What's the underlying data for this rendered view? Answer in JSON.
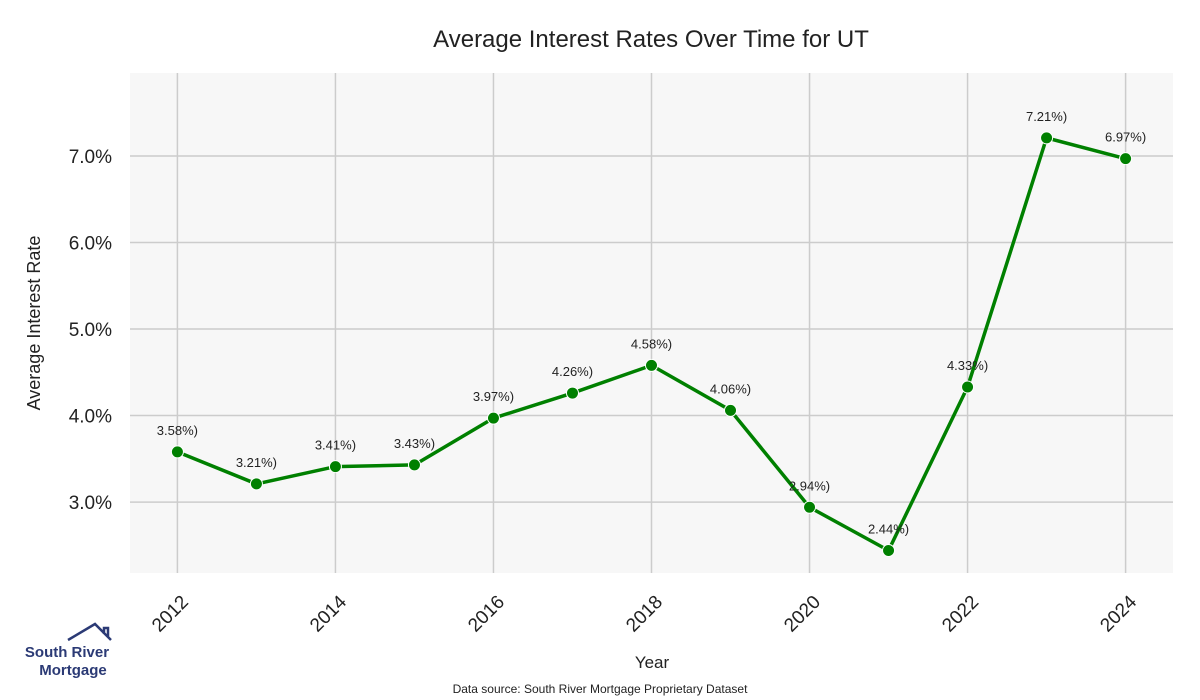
{
  "chart_data": {
    "type": "line",
    "title": "Average Interest Rates Over Time for UT",
    "x_label": "Year",
    "y_label": "Average Interest Rate",
    "x": [
      2012,
      2013,
      2014,
      2015,
      2016,
      2017,
      2018,
      2019,
      2020,
      2021,
      2022,
      2023,
      2024
    ],
    "values": [
      3.58,
      3.21,
      3.41,
      3.43,
      3.97,
      4.26,
      4.58,
      4.06,
      2.94,
      2.44,
      4.33,
      7.21,
      6.97
    ],
    "value_labels": [
      "3.58%)",
      "3.21%)",
      "3.41%)",
      "3.43%)",
      "3.97%)",
      "4.26%)",
      "4.58%)",
      "4.06%)",
      "2.94%)",
      "2.44%)",
      "4.33%)",
      "7.21%)",
      "6.97%)"
    ],
    "color": "#008000",
    "xlim": [
      2011.4,
      2024.6
    ],
    "xticks": [
      2012,
      2014,
      2016,
      2018,
      2020,
      2022,
      2024
    ],
    "ylim": [
      2.18,
      7.96
    ],
    "yticks": [
      {
        "value": 3,
        "label": "3.0%"
      },
      {
        "value": 4,
        "label": "4.0%"
      },
      {
        "value": 5,
        "label": "5.0%"
      },
      {
        "value": 6,
        "label": "6.0%"
      },
      {
        "value": 7,
        "label": "7.0%"
      }
    ],
    "grid": true,
    "source": "Data source: South River Mortgage Proprietary Dataset"
  },
  "logo": {
    "line1": "South River",
    "line2": "Mortgage"
  }
}
